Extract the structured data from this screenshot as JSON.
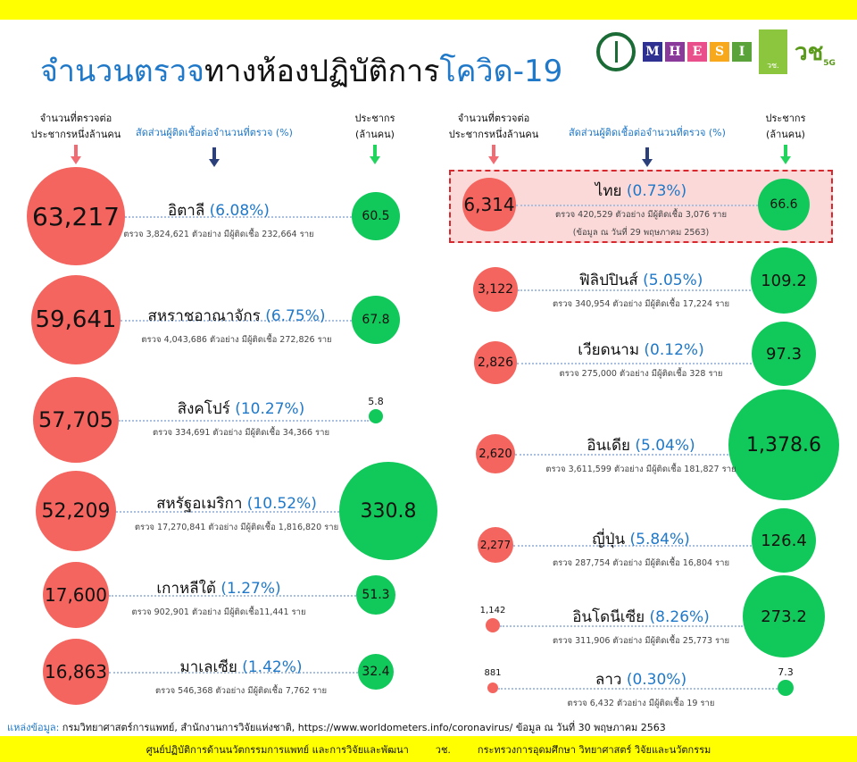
{
  "title": {
    "part1": "จำนวนตรวจ",
    "part2": "ทางห้องปฏิบัติการ",
    "part3": "โควิด-19"
  },
  "logos": {
    "mhesi": [
      "M",
      "H",
      "E",
      "S",
      "I"
    ],
    "mhesi_colors": [
      "#2e3192",
      "#8a3a9a",
      "#e94f8a",
      "#f7a81b",
      "#5aa33a"
    ],
    "nrct": "วช. NRCT",
    "v5g": "วช 5G"
  },
  "headers": {
    "per_million": "จำนวนที่ตรวจต่อ",
    "per_million2": "ประชากรหนึ่งล้านคน",
    "positive_rate": "สัดส่วนผู้ติดเชื้อต่อจำนวนที่ตรวจ (%)",
    "population": "ประชากร",
    "population2": "(ล้านคน)"
  },
  "colors": {
    "tests_per_million": "#f4655f",
    "population": "#10c95a",
    "rate_text": "#1f78c8",
    "arrow_red": "#f26b72",
    "arrow_navy": "#2b3f7a",
    "arrow_green": "#22d45e"
  },
  "chart_data": {
    "type": "bubble",
    "columns": [
      "country",
      "tests_per_million",
      "positive_rate_pct",
      "tests",
      "infected",
      "population_million"
    ],
    "rows": [
      {
        "country": "อิตาลี",
        "tpm": "63,217",
        "rate": "(6.08%)",
        "detail": "ตรวจ 3,824,621 ตัวอย่าง มีผู้ติดเชื้อ 232,664 ราย",
        "pop": "60.5"
      },
      {
        "country": "สหราชอาณาจักร",
        "tpm": "59,641",
        "rate": "(6.75%)",
        "detail": "ตรวจ 4,043,686 ตัวอย่าง มีผู้ติดเชื้อ 272,826 ราย",
        "pop": "67.8"
      },
      {
        "country": "สิงคโปร์",
        "tpm": "57,705",
        "rate": "(10.27%)",
        "detail": "ตรวจ 334,691 ตัวอย่าง มีผู้ติดเชื้อ 34,366 ราย",
        "pop": "5.8"
      },
      {
        "country": "สหรัฐอเมริกา",
        "tpm": "52,209",
        "rate": "(10.52%)",
        "detail": "ตรวจ 17,270,841  ตัวอย่าง มีผู้ติดเชื้อ 1,816,820  ราย",
        "pop": "330.8"
      },
      {
        "country": "เกาหลีใต้",
        "tpm": "17,600",
        "rate": "(1.27%)",
        "detail": "ตรวจ 902,901 ตัวอย่าง มีผู้ติดเชื้อ11,441 ราย",
        "pop": "51.3"
      },
      {
        "country": "มาเลเซีย",
        "tpm": "16,863",
        "rate": "(1.42%)",
        "detail": "ตรวจ 546,368 ตัวอย่าง มีผู้ติดเชื้อ 7,762 ราย",
        "pop": "32.4"
      },
      {
        "country": "ไทย",
        "tpm": "6,314",
        "rate": "(0.73%)",
        "detail": "ตรวจ 420,529 ตัวอย่าง มีผู้ติดเชื้อ 3,076 ราย",
        "detail2": "(ข้อมูล ณ วันที่ 29 พฤษภาคม 2563)",
        "pop": "66.6",
        "highlight": true
      },
      {
        "country": "ฟิลิปปินส์",
        "tpm": "3,122",
        "rate": "(5.05%)",
        "detail": "ตรวจ 340,954 ตัวอย่าง มีผู้ติดเชื้อ 17,224 ราย",
        "pop": "109.2"
      },
      {
        "country": "เวียดนาม",
        "tpm": "2,826",
        "rate": "(0.12%)",
        "detail": "ตรวจ 275,000 ตัวอย่าง มีผู้ติดเชื้อ 328 ราย",
        "pop": "97.3"
      },
      {
        "country": "อินเดีย",
        "tpm": "2,620",
        "rate": "(5.04%)",
        "detail": "ตรวจ 3,611,599 ตัวอย่าง มีผู้ติดเชื้อ 181,827 ราย",
        "pop": "1,378.6"
      },
      {
        "country": "ญี่ปุ่น",
        "tpm": "2,277",
        "rate": "(5.84%)",
        "detail": "ตรวจ 287,754 ตัวอย่าง มีผู้ติดเชื้อ 16,804 ราย",
        "pop": "126.4"
      },
      {
        "country": "อินโดนีเซีย",
        "tpm": "1,142",
        "rate": "(8.26%)",
        "detail": "ตรวจ 311,906 ตัวอย่าง มีผู้ติดเชื้อ 25,773 ราย",
        "pop": "273.2"
      },
      {
        "country": "ลาว",
        "tpm": "881",
        "rate": "(0.30%)",
        "detail": "ตรวจ 6,432 ตัวอย่าง มีผู้ติดเชื้อ 19 ราย",
        "pop": "7.3"
      }
    ]
  },
  "source": {
    "label": "แหล่งข้อมูล:",
    "text": "กรมวิทยาศาสตร์การแพทย์, สำนักงานการวิจัยแห่งชาติ, https://www.worldometers.info/coronavirus/ ข้อมูล ณ วันที่ 30 พฤษภาคม 2563"
  },
  "footer": [
    "ศูนย์ปฏิบัติการด้านนวัตกรรมการแพทย์ และการวิจัยและพัฒนา",
    "วช.",
    "กระทรวงการอุดมศึกษา วิทยาศาสตร์ วิจัยและนวัตกรรม"
  ]
}
